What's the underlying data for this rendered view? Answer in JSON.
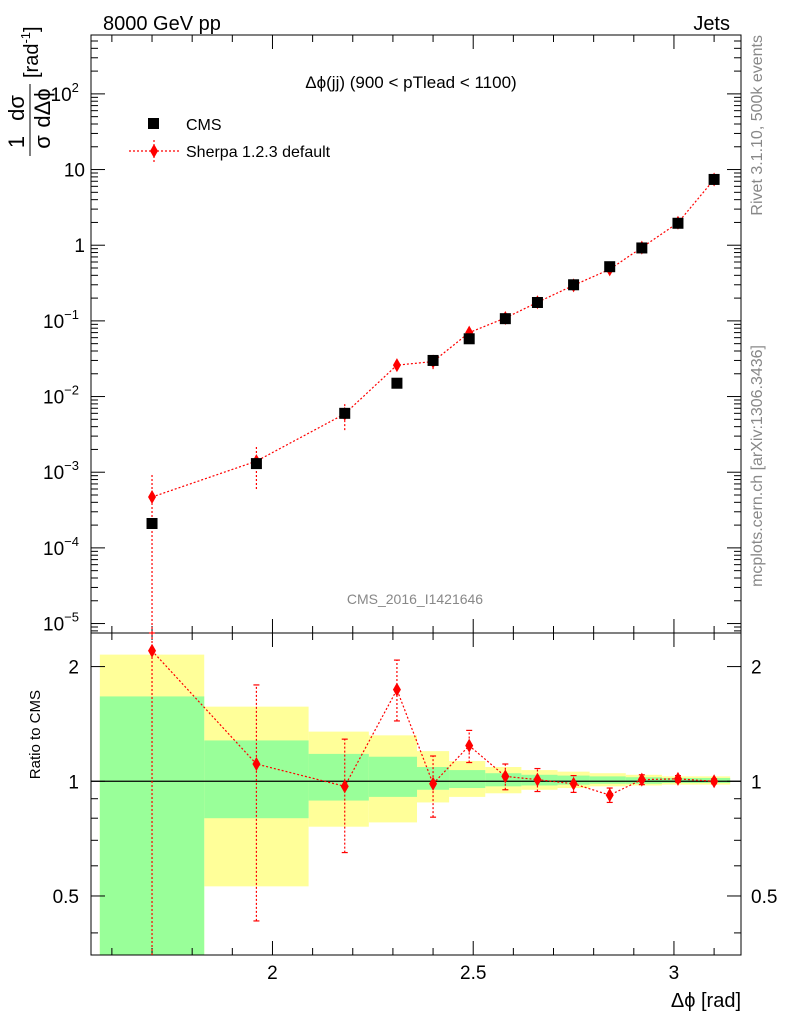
{
  "header": {
    "left": "8000 GeV pp",
    "right": "Jets"
  },
  "side": {
    "rivet": "Rivet 3.1.10,  500k events",
    "mcplots": "mcplots.cern.ch [arXiv:1306.3436]"
  },
  "chart_data": [
    {
      "type": "scatter",
      "title": "Δϕ(jj) (900 < pTlead <  1100)",
      "ylabel": "1/σ dσ/dΔϕ [rad⁻¹]",
      "ylabel_parts": {
        "one": "1",
        "dsigma": "dσ",
        "sigma": "σ",
        "dphi": "dΔϕ",
        "unit": "[rad",
        "exp": "-1",
        "close": "]"
      },
      "xlabel": "",
      "yscale": "log",
      "ylim": [
        7.5e-06,
        600
      ],
      "xlim": [
        1.548,
        3.167
      ],
      "watermark": "CMS_2016_I1421646",
      "yticks": [
        {
          "v": 100,
          "base": "10",
          "exp": "2"
        },
        {
          "v": 10,
          "base": "10",
          "exp": ""
        },
        {
          "v": 1,
          "base": "1",
          "exp": ""
        },
        {
          "v": 0.1,
          "base": "10",
          "exp": "−1"
        },
        {
          "v": 0.01,
          "base": "10",
          "exp": "−2"
        },
        {
          "v": 0.001,
          "base": "10",
          "exp": "−3"
        },
        {
          "v": 0.0001,
          "base": "10",
          "exp": "−4"
        },
        {
          "v": 1e-05,
          "base": "10",
          "exp": "−5"
        }
      ],
      "legend": {
        "placement": "top-left",
        "entries": [
          "CMS",
          "Sherpa 1.2.3 default"
        ]
      },
      "series": [
        {
          "name": "CMS",
          "color": "#000000",
          "x": [
            1.7,
            1.96,
            2.18,
            2.31,
            2.4,
            2.49,
            2.58,
            2.66,
            2.75,
            2.84,
            2.92,
            3.01,
            3.1
          ],
          "y": [
            0.00021,
            0.0013,
            0.006,
            0.015,
            0.03,
            0.058,
            0.107,
            0.175,
            0.3,
            0.52,
            0.92,
            1.95,
            7.4
          ]
        },
        {
          "name": "Sherpa 1.2.3 default",
          "color": "#ff0000",
          "x": [
            1.7,
            1.96,
            2.18,
            2.31,
            2.4,
            2.49,
            2.58,
            2.66,
            2.75,
            2.84,
            2.92,
            3.01,
            3.1
          ],
          "y": [
            0.00047,
            0.0014,
            0.0059,
            0.026,
            0.029,
            0.07,
            0.109,
            0.176,
            0.295,
            0.48,
            0.93,
            1.98,
            7.4
          ],
          "yerr_low": [
            0.00047,
            0.0008,
            0.0023,
            0.004,
            0.006,
            0.008,
            0.009,
            0.012,
            0.015,
            0.03,
            0.05,
            0.1,
            0.3
          ],
          "yerr_high": [
            0.0005,
            0.0008,
            0.0023,
            0.004,
            0.006,
            0.008,
            0.009,
            0.012,
            0.015,
            0.03,
            0.05,
            0.1,
            0.3
          ]
        }
      ]
    },
    {
      "type": "scatter",
      "ylabel": "Ratio to CMS",
      "xlabel": "Δϕ [rad]",
      "yscale": "log",
      "ylim": [
        0.35,
        2.45
      ],
      "xlim": [
        1.548,
        3.167
      ],
      "xticks": [
        2,
        2.5,
        3
      ],
      "yticks": [
        0.5,
        1,
        2
      ],
      "ytick_labels": [
        "0.5",
        "1",
        "2"
      ],
      "reference_line": 1,
      "bands": {
        "edges": [
          1.57,
          1.83,
          2.09,
          2.24,
          2.36,
          2.44,
          2.53,
          2.62,
          2.71,
          2.79,
          2.88,
          2.97,
          3.06,
          3.14
        ],
        "total": [
          [
            0.35,
            2.15
          ],
          [
            0.53,
            1.57
          ],
          [
            0.76,
            1.35
          ],
          [
            0.78,
            1.32
          ],
          [
            0.88,
            1.2
          ],
          [
            0.91,
            1.13
          ],
          [
            0.93,
            1.09
          ],
          [
            0.95,
            1.07
          ],
          [
            0.96,
            1.06
          ],
          [
            0.97,
            1.05
          ],
          [
            0.975,
            1.04
          ],
          [
            0.98,
            1.03
          ],
          [
            0.98,
            1.03
          ]
        ],
        "stat": [
          [
            0.35,
            1.67
          ],
          [
            0.8,
            1.28
          ],
          [
            0.89,
            1.18
          ],
          [
            0.91,
            1.16
          ],
          [
            0.95,
            1.09
          ],
          [
            0.96,
            1.07
          ],
          [
            0.97,
            1.05
          ],
          [
            0.975,
            1.04
          ],
          [
            0.98,
            1.035
          ],
          [
            0.985,
            1.03
          ],
          [
            0.985,
            1.025
          ],
          [
            0.99,
            1.02
          ],
          [
            0.99,
            1.02
          ]
        ],
        "total_color": "#ffff99",
        "stat_color": "#99ff99"
      },
      "series": [
        {
          "name": "Sherpa 1.2.3 default",
          "color": "#ff0000",
          "x": [
            1.7,
            1.96,
            2.18,
            2.31,
            2.4,
            2.49,
            2.58,
            2.66,
            2.75,
            2.84,
            2.92,
            3.01,
            3.1
          ],
          "y": [
            2.2,
            1.11,
            0.97,
            1.74,
            0.985,
            1.24,
            1.03,
            1.01,
            0.985,
            0.92,
            1.01,
            1.015,
            1.0
          ],
          "yerr_low": [
            1.9,
            0.68,
            0.32,
            0.3,
            0.18,
            0.12,
            0.08,
            0.07,
            0.05,
            0.04,
            0.03,
            0.02,
            0.015
          ],
          "yerr_high": [
            0.3,
            0.68,
            0.32,
            0.34,
            0.18,
            0.12,
            0.08,
            0.07,
            0.05,
            0.04,
            0.03,
            0.02,
            0.015
          ]
        }
      ]
    }
  ]
}
